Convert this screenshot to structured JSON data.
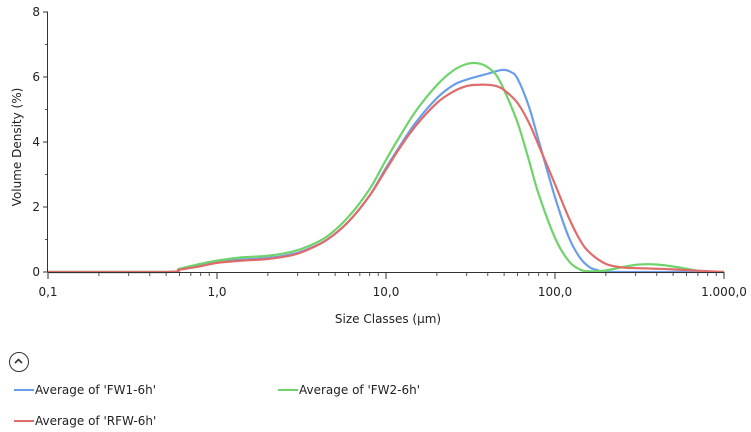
{
  "chart_data": {
    "type": "line",
    "xscale": "log",
    "xlabel": "Size Classes (µm)",
    "ylabel": "Volume Density (%)",
    "xlim": [
      0.1,
      1000
    ],
    "ylim": [
      0,
      8
    ],
    "x_ticks": [
      {
        "value": 0.1,
        "label": "0,1"
      },
      {
        "value": 1,
        "label": "1,0"
      },
      {
        "value": 10,
        "label": "10,0"
      },
      {
        "value": 100,
        "label": "100,0"
      },
      {
        "value": 1000,
        "label": "1.000,0"
      }
    ],
    "y_ticks": [
      {
        "value": 0,
        "label": "0"
      },
      {
        "value": 2,
        "label": "2"
      },
      {
        "value": 4,
        "label": "4"
      },
      {
        "value": 6,
        "label": "6"
      },
      {
        "value": 8,
        "label": "8"
      }
    ],
    "legend": "bottom",
    "series": [
      {
        "name": "Average of 'FW1-6h'",
        "color": "#6b9ee8",
        "points": [
          [
            0.1,
            0
          ],
          [
            0.5,
            0
          ],
          [
            0.6,
            0.08
          ],
          [
            0.8,
            0.2
          ],
          [
            1.0,
            0.3
          ],
          [
            1.4,
            0.38
          ],
          [
            2.0,
            0.43
          ],
          [
            2.8,
            0.55
          ],
          [
            3.5,
            0.72
          ],
          [
            4.5,
            1.0
          ],
          [
            6.0,
            1.55
          ],
          [
            8.0,
            2.35
          ],
          [
            10.0,
            3.2
          ],
          [
            12.0,
            3.85
          ],
          [
            15.0,
            4.6
          ],
          [
            20.0,
            5.35
          ],
          [
            25.0,
            5.75
          ],
          [
            30.0,
            5.92
          ],
          [
            35.0,
            6.02
          ],
          [
            40.0,
            6.1
          ],
          [
            45.0,
            6.18
          ],
          [
            50.0,
            6.22
          ],
          [
            55.0,
            6.15
          ],
          [
            60.0,
            5.95
          ],
          [
            70.0,
            5.1
          ],
          [
            80.0,
            4.05
          ],
          [
            100.0,
            2.3
          ],
          [
            120.0,
            1.1
          ],
          [
            140.0,
            0.45
          ],
          [
            160.0,
            0.15
          ],
          [
            180.0,
            0.05
          ],
          [
            200.0,
            0
          ],
          [
            1000,
            0
          ]
        ]
      },
      {
        "name": "Average of 'FW2-6h'",
        "color": "#6fd36b",
        "points": [
          [
            0.1,
            0
          ],
          [
            0.5,
            0
          ],
          [
            0.6,
            0.1
          ],
          [
            0.8,
            0.25
          ],
          [
            1.0,
            0.35
          ],
          [
            1.4,
            0.45
          ],
          [
            2.0,
            0.5
          ],
          [
            2.8,
            0.63
          ],
          [
            3.5,
            0.8
          ],
          [
            4.5,
            1.1
          ],
          [
            6.0,
            1.7
          ],
          [
            8.0,
            2.55
          ],
          [
            10.0,
            3.45
          ],
          [
            12.0,
            4.15
          ],
          [
            15.0,
            4.95
          ],
          [
            20.0,
            5.75
          ],
          [
            25.0,
            6.2
          ],
          [
            30.0,
            6.4
          ],
          [
            35.0,
            6.42
          ],
          [
            40.0,
            6.3
          ],
          [
            45.0,
            6.05
          ],
          [
            50.0,
            5.6
          ],
          [
            60.0,
            4.6
          ],
          [
            70.0,
            3.45
          ],
          [
            80.0,
            2.4
          ],
          [
            100.0,
            1.05
          ],
          [
            120.0,
            0.35
          ],
          [
            140.0,
            0.08
          ],
          [
            160.0,
            0.02
          ],
          [
            200.0,
            0.05
          ],
          [
            250.0,
            0.15
          ],
          [
            300.0,
            0.22
          ],
          [
            350.0,
            0.24
          ],
          [
            400.0,
            0.23
          ],
          [
            500.0,
            0.17
          ],
          [
            600.0,
            0.1
          ],
          [
            700.0,
            0.04
          ],
          [
            800.0,
            0.01
          ],
          [
            1000,
            0
          ]
        ]
      },
      {
        "name": "Average of 'RFW-6h'",
        "color": "#e06b6b",
        "points": [
          [
            0.1,
            0
          ],
          [
            0.5,
            0
          ],
          [
            0.6,
            0.07
          ],
          [
            0.8,
            0.18
          ],
          [
            1.0,
            0.28
          ],
          [
            1.4,
            0.35
          ],
          [
            2.0,
            0.4
          ],
          [
            2.8,
            0.52
          ],
          [
            3.5,
            0.7
          ],
          [
            4.5,
            1.0
          ],
          [
            6.0,
            1.55
          ],
          [
            8.0,
            2.35
          ],
          [
            10.0,
            3.15
          ],
          [
            12.0,
            3.8
          ],
          [
            15.0,
            4.5
          ],
          [
            20.0,
            5.2
          ],
          [
            25.0,
            5.55
          ],
          [
            30.0,
            5.72
          ],
          [
            35.0,
            5.76
          ],
          [
            40.0,
            5.76
          ],
          [
            45.0,
            5.72
          ],
          [
            50.0,
            5.6
          ],
          [
            60.0,
            5.2
          ],
          [
            70.0,
            4.6
          ],
          [
            80.0,
            3.9
          ],
          [
            100.0,
            2.7
          ],
          [
            120.0,
            1.7
          ],
          [
            140.0,
            1.0
          ],
          [
            160.0,
            0.6
          ],
          [
            200.0,
            0.25
          ],
          [
            250.0,
            0.14
          ],
          [
            300.0,
            0.12
          ],
          [
            400.0,
            0.1
          ],
          [
            500.0,
            0.08
          ],
          [
            700.0,
            0.04
          ],
          [
            1000,
            0
          ]
        ]
      }
    ]
  },
  "controls": {
    "collapse_icon": "chevron-up-icon"
  }
}
